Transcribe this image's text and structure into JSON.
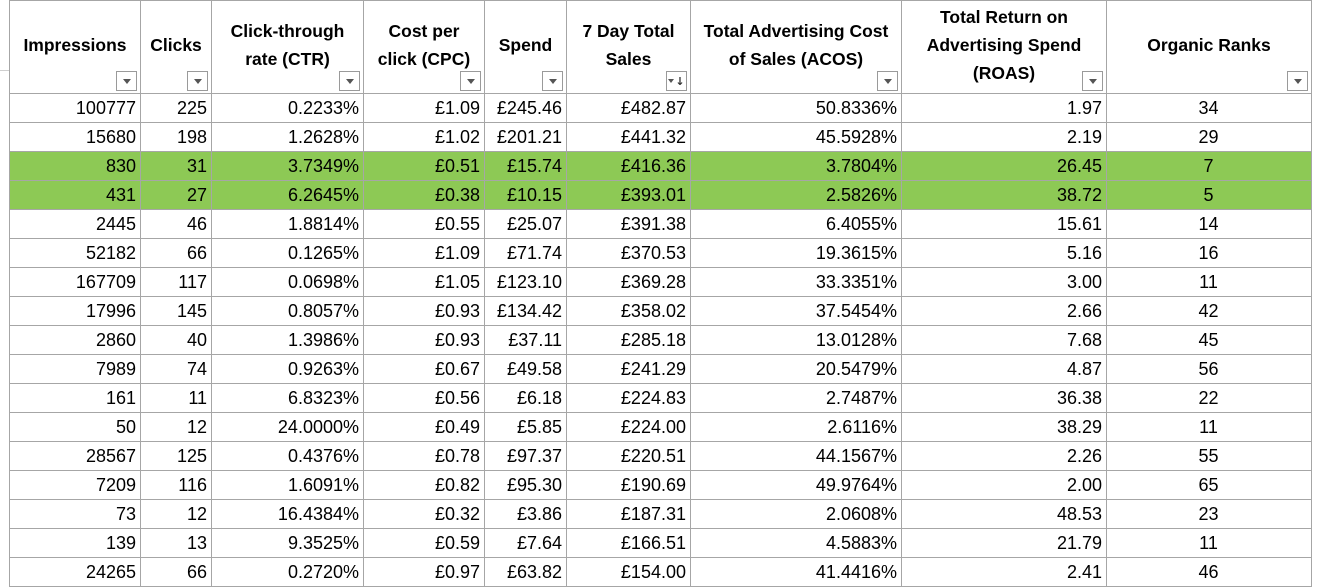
{
  "columns": [
    {
      "label": "Impressions"
    },
    {
      "label": "Clicks"
    },
    {
      "label": "Click-through rate (CTR)"
    },
    {
      "label": "Cost per click (CPC)"
    },
    {
      "label": "Spend"
    },
    {
      "label": "7 Day Total Sales"
    },
    {
      "label": "Total Advertising Cost of Sales (ACOS)"
    },
    {
      "label": "Total Return on Advertising Spend (ROAS)"
    },
    {
      "label": "Organic Ranks"
    }
  ],
  "header_lines": [
    [
      "Impressions"
    ],
    [
      "Clicks"
    ],
    [
      "Click-through",
      "rate (CTR)"
    ],
    [
      "Cost per",
      "click (CPC)"
    ],
    [
      "Spend"
    ],
    [
      "7 Day Total",
      "Sales"
    ],
    [
      "Total Advertising Cost",
      "of Sales (ACOS)"
    ],
    [
      "Total Return on",
      "Advertising Spend",
      "(ROAS)"
    ],
    [
      "Organic Ranks"
    ]
  ],
  "sorted_column_index": 5,
  "highlight_color": "#8dc955",
  "rows": [
    {
      "highlight": false,
      "cells": [
        "100777",
        "225",
        "0.2233%",
        "£1.09",
        "£245.46",
        "£482.87",
        "50.8336%",
        "1.97",
        "34"
      ]
    },
    {
      "highlight": false,
      "cells": [
        "15680",
        "198",
        "1.2628%",
        "£1.02",
        "£201.21",
        "£441.32",
        "45.5928%",
        "2.19",
        "29"
      ]
    },
    {
      "highlight": true,
      "cells": [
        "830",
        "31",
        "3.7349%",
        "£0.51",
        "£15.74",
        "£416.36",
        "3.7804%",
        "26.45",
        "7"
      ]
    },
    {
      "highlight": true,
      "cells": [
        "431",
        "27",
        "6.2645%",
        "£0.38",
        "£10.15",
        "£393.01",
        "2.5826%",
        "38.72",
        "5"
      ]
    },
    {
      "highlight": false,
      "cells": [
        "2445",
        "46",
        "1.8814%",
        "£0.55",
        "£25.07",
        "£391.38",
        "6.4055%",
        "15.61",
        "14"
      ]
    },
    {
      "highlight": false,
      "cells": [
        "52182",
        "66",
        "0.1265%",
        "£1.09",
        "£71.74",
        "£370.53",
        "19.3615%",
        "5.16",
        "16"
      ]
    },
    {
      "highlight": false,
      "cells": [
        "167709",
        "117",
        "0.0698%",
        "£1.05",
        "£123.10",
        "£369.28",
        "33.3351%",
        "3.00",
        "11"
      ]
    },
    {
      "highlight": false,
      "cells": [
        "17996",
        "145",
        "0.8057%",
        "£0.93",
        "£134.42",
        "£358.02",
        "37.5454%",
        "2.66",
        "42"
      ]
    },
    {
      "highlight": false,
      "cells": [
        "2860",
        "40",
        "1.3986%",
        "£0.93",
        "£37.11",
        "£285.18",
        "13.0128%",
        "7.68",
        "45"
      ]
    },
    {
      "highlight": false,
      "cells": [
        "7989",
        "74",
        "0.9263%",
        "£0.67",
        "£49.58",
        "£241.29",
        "20.5479%",
        "4.87",
        "56"
      ]
    },
    {
      "highlight": false,
      "cells": [
        "161",
        "11",
        "6.8323%",
        "£0.56",
        "£6.18",
        "£224.83",
        "2.7487%",
        "36.38",
        "22"
      ]
    },
    {
      "highlight": false,
      "cells": [
        "50",
        "12",
        "24.0000%",
        "£0.49",
        "£5.85",
        "£224.00",
        "2.6116%",
        "38.29",
        "11"
      ]
    },
    {
      "highlight": false,
      "cells": [
        "28567",
        "125",
        "0.4376%",
        "£0.78",
        "£97.37",
        "£220.51",
        "44.1567%",
        "2.26",
        "55"
      ]
    },
    {
      "highlight": false,
      "cells": [
        "7209",
        "116",
        "1.6091%",
        "£0.82",
        "£95.30",
        "£190.69",
        "49.9764%",
        "2.00",
        "65"
      ]
    },
    {
      "highlight": false,
      "cells": [
        "73",
        "12",
        "16.4384%",
        "£0.32",
        "£3.86",
        "£187.31",
        "2.0608%",
        "48.53",
        "23"
      ]
    },
    {
      "highlight": false,
      "cells": [
        "139",
        "13",
        "9.3525%",
        "£0.59",
        "£7.64",
        "£166.51",
        "4.5883%",
        "21.79",
        "11"
      ]
    },
    {
      "highlight": false,
      "cells": [
        "24265",
        "66",
        "0.2720%",
        "£0.97",
        "£63.82",
        "£154.00",
        "41.4416%",
        "2.41",
        "46"
      ]
    }
  ]
}
